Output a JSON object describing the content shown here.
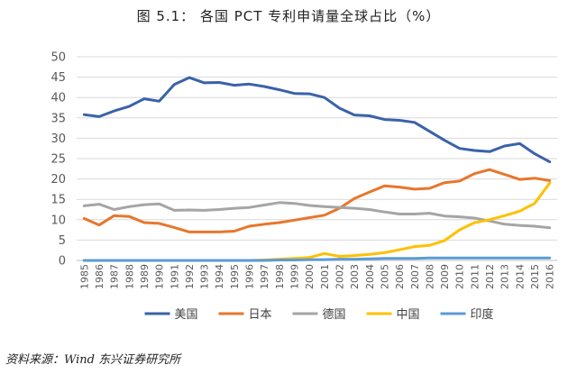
{
  "source": "资料来源：Wind 东兴证券研究所",
  "chart_data": {
    "type": "line",
    "title": "图 5.1：  各国 PCT 专利申请量全球占比（%）",
    "xlabel": "",
    "ylabel": "",
    "ylim": [
      0,
      50
    ],
    "yticks": [
      0,
      5,
      10,
      15,
      20,
      25,
      30,
      35,
      40,
      45,
      50
    ],
    "grid": true,
    "legend_position": "bottom",
    "x": [
      "1985",
      "1986",
      "1987",
      "1988",
      "1989",
      "1990",
      "1991",
      "1992",
      "1993",
      "1994",
      "1995",
      "1996",
      "1997",
      "1998",
      "1999",
      "2000",
      "2001",
      "2002",
      "2003",
      "2004",
      "2005",
      "2006",
      "2007",
      "2008",
      "2009",
      "2010",
      "2011",
      "2012",
      "2013",
      "2014",
      "2015",
      "2016"
    ],
    "series": [
      {
        "name": "美国",
        "color": "#3a62a8",
        "values": [
          35.8,
          35.3,
          36.7,
          37.8,
          39.7,
          39.1,
          43.2,
          44.9,
          43.6,
          43.7,
          43.0,
          43.3,
          42.7,
          41.9,
          41.0,
          40.9,
          40.0,
          37.4,
          35.7,
          35.5,
          34.6,
          34.4,
          33.9,
          31.7,
          29.5,
          27.5,
          27.0,
          26.7,
          28.1,
          28.7,
          26.2,
          24.2
        ]
      },
      {
        "name": "日本",
        "color": "#e8762c",
        "values": [
          10.3,
          8.7,
          11.0,
          10.8,
          9.3,
          9.1,
          8.1,
          7.0,
          7.0,
          7.0,
          7.2,
          8.4,
          8.9,
          9.3,
          9.9,
          10.5,
          11.1,
          12.8,
          15.2,
          16.8,
          18.3,
          18.0,
          17.5,
          17.7,
          19.1,
          19.5,
          21.3,
          22.3,
          21.1,
          19.9,
          20.2,
          19.6
        ]
      },
      {
        "name": "德国",
        "color": "#a5a5a5",
        "values": [
          13.4,
          13.8,
          12.5,
          13.2,
          13.7,
          13.9,
          12.3,
          12.4,
          12.3,
          12.5,
          12.8,
          13.0,
          13.6,
          14.2,
          14.0,
          13.5,
          13.2,
          13.0,
          12.8,
          12.5,
          11.9,
          11.4,
          11.4,
          11.6,
          10.9,
          10.7,
          10.4,
          9.7,
          8.9,
          8.6,
          8.4,
          8.0
        ]
      },
      {
        "name": "中国",
        "color": "#ffc000",
        "values": [
          0.0,
          0.0,
          0.0,
          0.0,
          0.0,
          0.0,
          0.0,
          0.0,
          0.0,
          0.0,
          0.0,
          0.0,
          0.1,
          0.3,
          0.5,
          0.7,
          1.7,
          1.0,
          1.2,
          1.5,
          1.9,
          2.6,
          3.4,
          3.7,
          4.9,
          7.5,
          9.3,
          10.0,
          11.0,
          12.1,
          14.0,
          19.0
        ]
      },
      {
        "name": "印度",
        "color": "#5b9bd5",
        "values": [
          0.0,
          0.0,
          0.0,
          0.0,
          0.0,
          0.0,
          0.0,
          0.0,
          0.0,
          0.0,
          0.0,
          0.0,
          0.0,
          0.1,
          0.1,
          0.2,
          0.2,
          0.3,
          0.3,
          0.4,
          0.5,
          0.5,
          0.5,
          0.6,
          0.6,
          0.6,
          0.6,
          0.6,
          0.6,
          0.6,
          0.6,
          0.6
        ]
      }
    ]
  }
}
